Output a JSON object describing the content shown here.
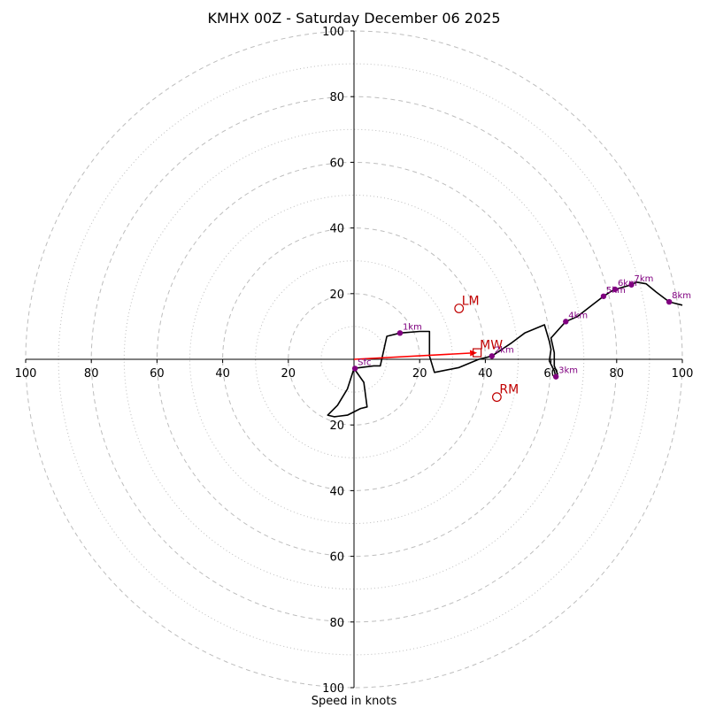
{
  "chart_data": {
    "type": "hodograph",
    "title": "KMHX 00Z - Saturday December 06 2025",
    "xlabel": "Speed in knots",
    "ring_major": [
      20,
      40,
      60,
      80,
      100
    ],
    "ring_minor": [
      10,
      30,
      50,
      70,
      90
    ],
    "x_ticks": {
      "values": [
        -100,
        -80,
        -60,
        -40,
        -20,
        20,
        40,
        60,
        80,
        100
      ],
      "labels": [
        "100",
        "80",
        "60",
        "40",
        "20",
        "20",
        "40",
        "60",
        "80",
        "100"
      ]
    },
    "y_ticks": {
      "values": [
        100,
        80,
        60,
        40,
        20,
        -20,
        -40,
        -60,
        -80,
        -100
      ],
      "labels": [
        "100",
        "80",
        "60",
        "40",
        "20",
        "20",
        "40",
        "60",
        "80",
        "100"
      ]
    },
    "colors": {
      "trace": "#000000",
      "height_marker": "#800080",
      "motion": "#c00000",
      "mean_wind_arrow": "#ff0000",
      "ring": "#bdbdbd",
      "axis": "#000000"
    },
    "trace": [
      [
        0.3,
        -2.5
      ],
      [
        0.5,
        -2.7
      ],
      [
        2,
        -2.5
      ],
      [
        6,
        -2
      ],
      [
        8,
        -2
      ],
      [
        10,
        7
      ],
      [
        14,
        8
      ],
      [
        20,
        8.5
      ],
      [
        23,
        8.5
      ],
      [
        23,
        1
      ],
      [
        24.5,
        -4
      ],
      [
        32,
        -2.5
      ],
      [
        38,
        0
      ],
      [
        42,
        1
      ],
      [
        48,
        5
      ],
      [
        52,
        8
      ],
      [
        58,
        10.5
      ],
      [
        59.5,
        5.5
      ],
      [
        60,
        3
      ],
      [
        59.5,
        -0.5
      ],
      [
        61,
        -3.5
      ],
      [
        61.5,
        -5.5
      ],
      [
        62,
        -4.5
      ],
      [
        61,
        -2
      ],
      [
        61,
        2
      ],
      [
        60,
        6.5
      ],
      [
        64.5,
        11.5
      ],
      [
        68,
        13
      ],
      [
        72.5,
        16.5
      ],
      [
        76,
        19.2
      ],
      [
        78,
        20.5
      ],
      [
        79.5,
        21.3
      ],
      [
        82,
        22
      ],
      [
        84.5,
        22.7
      ],
      [
        86,
        23.5
      ],
      [
        89,
        23
      ],
      [
        92,
        20.5
      ],
      [
        96,
        17.5
      ],
      [
        100,
        16.5
      ]
    ],
    "trace_tail": [
      [
        0,
        -2.8
      ],
      [
        -2,
        -9
      ],
      [
        -5,
        -14
      ],
      [
        -8,
        -17
      ],
      [
        -6,
        -17.5
      ],
      [
        -2,
        -17
      ],
      [
        2,
        -15
      ],
      [
        4,
        -14.5
      ],
      [
        3,
        -7
      ],
      [
        0.5,
        -3.5
      ]
    ],
    "height_markers": [
      {
        "label": "Sfc",
        "u": 0.3,
        "v": -2.8
      },
      {
        "label": "1km",
        "u": 14,
        "v": 8
      },
      {
        "label": "2km",
        "u": 42,
        "v": 1
      },
      {
        "label": "3km",
        "u": 61.5,
        "v": -5.3
      },
      {
        "label": "4km",
        "u": 64.5,
        "v": 11.5
      },
      {
        "label": "5km",
        "u": 76,
        "v": 19.2
      },
      {
        "label": "6km",
        "u": 79.5,
        "v": 21.3
      },
      {
        "label": "7km",
        "u": 84.5,
        "v": 22.7
      },
      {
        "label": "8km",
        "u": 96,
        "v": 17.5
      }
    ],
    "storm_motion": [
      {
        "label": "LM",
        "u": 32,
        "v": 15.5,
        "marker": "circle"
      },
      {
        "label": "MW",
        "u": 37.5,
        "v": 2,
        "marker": "square"
      },
      {
        "label": "RM",
        "u": 43.5,
        "v": -11.5,
        "marker": "circle"
      }
    ],
    "mean_wind_arrow": {
      "from": [
        0,
        0
      ],
      "to": [
        37.5,
        2
      ]
    }
  }
}
